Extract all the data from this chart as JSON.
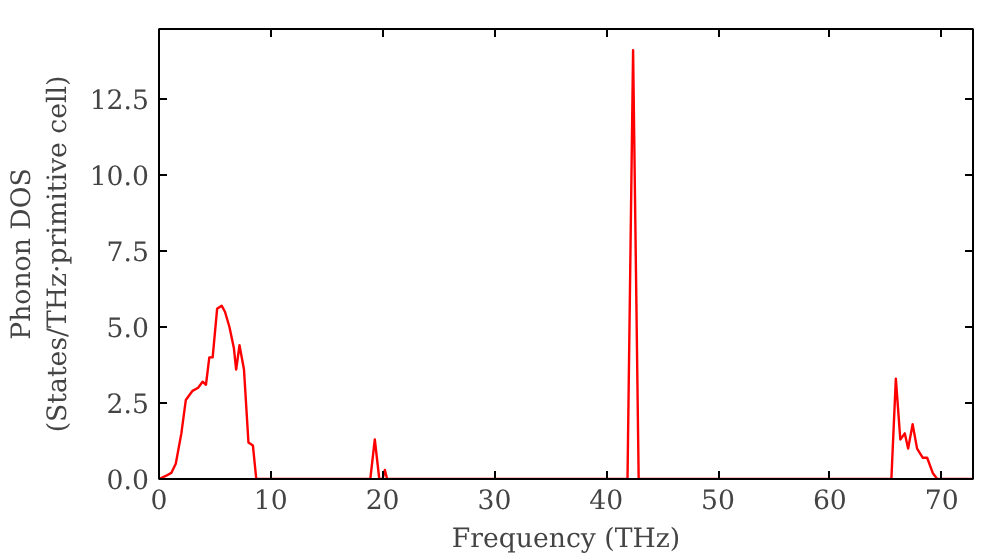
{
  "chart_data": {
    "type": "line",
    "xlabel": "Frequency (THz)",
    "ylabel": "Phonon DOS\n(States/THz·primitive cell)",
    "xlim": [
      0,
      72.8
    ],
    "ylim": [
      0,
      14.8
    ],
    "xticks": [
      0,
      10,
      20,
      30,
      40,
      50,
      60,
      70
    ],
    "yticks": [
      {
        "value": 0,
        "label": "0.0"
      },
      2.5,
      {
        "value": 5,
        "label": "5.0"
      },
      7.5,
      {
        "value": 10,
        "label": "10.0"
      },
      12.5
    ],
    "grid": false,
    "marker": "none",
    "line_style": "solid",
    "series": [
      {
        "color": "#ff0000",
        "x": [
          0,
          0.6,
          1.1,
          1.5,
          2.0,
          2.4,
          3.0,
          3.5,
          3.9,
          4.2,
          4.5,
          4.8,
          5.2,
          5.6,
          5.9,
          6.3,
          6.7,
          6.9,
          7.2,
          7.6,
          8.0,
          8.4,
          8.7,
          9.0,
          18.9,
          19.3,
          19.7,
          20.0,
          20.2,
          20.4,
          41.9,
          42.4,
          42.9,
          65.5,
          65.9,
          66.3,
          66.7,
          67.0,
          67.4,
          67.8,
          68.3,
          68.7,
          69.2,
          69.6,
          72.8
        ],
        "values": [
          0,
          0.1,
          0.2,
          0.5,
          1.5,
          2.6,
          2.9,
          3.0,
          3.2,
          3.1,
          4.0,
          4.0,
          5.6,
          5.7,
          5.5,
          5.0,
          4.3,
          3.6,
          4.4,
          3.6,
          1.2,
          1.1,
          0,
          0,
          0,
          1.3,
          0,
          0,
          0.3,
          0,
          0,
          14.1,
          0,
          0,
          3.3,
          1.3,
          1.5,
          1.0,
          1.8,
          1.0,
          0.7,
          0.7,
          0.2,
          0,
          0
        ]
      }
    ]
  }
}
